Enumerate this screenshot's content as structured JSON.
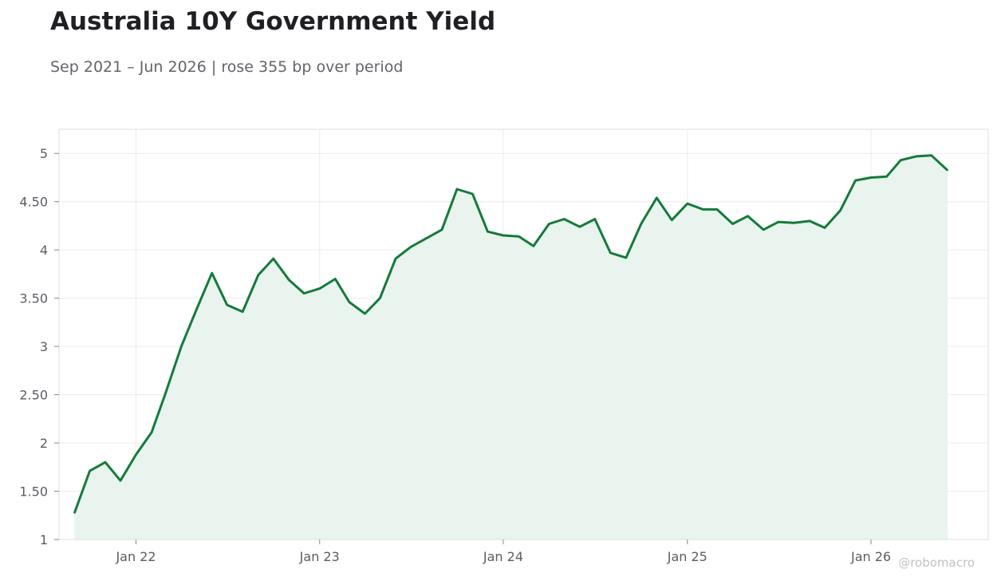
{
  "title": "Australia 10Y Government Yield",
  "subtitle": "Sep 2021 – Jun 2026 | rose 355 bp over period",
  "watermark": "@robomacro",
  "colors": {
    "line": "#157a3c",
    "fill": "#eaf4ee",
    "grid": "#ececec",
    "frame": "#dddddd"
  },
  "chart_data": {
    "type": "area",
    "title": "Australia 10Y Government Yield",
    "xlabel": "",
    "ylabel": "",
    "grid": true,
    "legend": "none",
    "ylim": [
      1,
      5.25
    ],
    "xlim": [
      "2021-08-01",
      "2026-08-22"
    ],
    "y_ticks": [
      1,
      1.5,
      2,
      2.5,
      3,
      3.5,
      4,
      4.5,
      5
    ],
    "y_tick_labels": [
      "1",
      "1.50",
      "2",
      "2.50",
      "3",
      "3.50",
      "4",
      "4.50",
      "5"
    ],
    "x_ticks": [
      "2022-01-01",
      "2023-01-01",
      "2024-01-01",
      "2025-01-01",
      "2026-01-01"
    ],
    "x_tick_labels": [
      "Jan 22",
      "Jan 23",
      "Jan 24",
      "Jan 25",
      "Jan 26"
    ],
    "series": [
      {
        "x": [
          "2021-09-01",
          "2021-10-01",
          "2021-11-01",
          "2021-12-01",
          "2022-01-01",
          "2022-02-01",
          "2022-03-01",
          "2022-04-01",
          "2022-05-01",
          "2022-06-01",
          "2022-07-01",
          "2022-08-01",
          "2022-09-01",
          "2022-10-01",
          "2022-11-01",
          "2022-12-01",
          "2023-01-01",
          "2023-02-01",
          "2023-03-01",
          "2023-04-01",
          "2023-05-01",
          "2023-06-01",
          "2023-07-01",
          "2023-08-01",
          "2023-09-01",
          "2023-10-01",
          "2023-11-01",
          "2023-12-01",
          "2024-01-01",
          "2024-02-01",
          "2024-03-01",
          "2024-04-01",
          "2024-05-01",
          "2024-06-01",
          "2024-07-01",
          "2024-08-01",
          "2024-09-01",
          "2024-10-01",
          "2024-11-01",
          "2024-12-01",
          "2025-01-01",
          "2025-02-01",
          "2025-03-01",
          "2025-04-01",
          "2025-05-01",
          "2025-06-01",
          "2025-07-01",
          "2025-08-01",
          "2025-09-01",
          "2025-10-01",
          "2025-11-01",
          "2025-12-01",
          "2026-01-01",
          "2026-02-01",
          "2026-03-01",
          "2026-04-01",
          "2026-05-01",
          "2026-06-01"
        ],
        "y": [
          1.28,
          1.71,
          1.8,
          1.61,
          1.88,
          2.11,
          2.52,
          3.0,
          3.38,
          3.76,
          3.43,
          3.36,
          3.74,
          3.91,
          3.69,
          3.55,
          3.6,
          3.7,
          3.46,
          3.34,
          3.5,
          3.91,
          4.03,
          4.12,
          4.21,
          4.63,
          4.58,
          4.19,
          4.15,
          4.14,
          4.04,
          4.27,
          4.32,
          4.24,
          4.32,
          3.97,
          3.92,
          4.27,
          4.54,
          4.31,
          4.48,
          4.42,
          4.42,
          4.27,
          4.35,
          4.21,
          4.29,
          4.28,
          4.3,
          4.23,
          4.41,
          4.72,
          4.75,
          4.76,
          4.93,
          4.97,
          4.98,
          4.83
        ]
      }
    ]
  }
}
